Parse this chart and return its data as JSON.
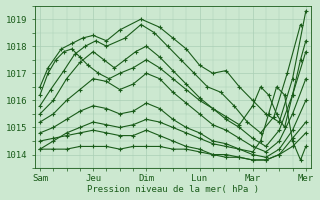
{
  "xlabel": "Pression niveau de la mer( hPa )",
  "ylim": [
    1013.5,
    1019.5
  ],
  "yticks": [
    1014,
    1015,
    1016,
    1017,
    1018,
    1019
  ],
  "day_labels": [
    "Sam",
    "Jeu",
    "Dim",
    "Lun",
    "Mar",
    "Mer"
  ],
  "day_positions": [
    0,
    2,
    4,
    6,
    8,
    10
  ],
  "bg_color": "#cce8d0",
  "grid_color": "#aacfb5",
  "line_color": "#1a5c1a",
  "marker": "+",
  "markersize": 3,
  "linewidth": 0.8,
  "lines": [
    {
      "x": [
        0.0,
        0.3,
        0.8,
        1.2,
        1.6,
        2.0,
        2.5,
        3.0,
        3.8,
        4.5,
        5.0,
        5.5,
        6.0,
        6.5,
        7.0,
        7.5,
        8.0,
        8.5,
        9.0,
        9.5,
        10.0
      ],
      "y": [
        1016.5,
        1017.2,
        1017.9,
        1018.1,
        1018.3,
        1018.4,
        1018.2,
        1018.6,
        1019.0,
        1018.7,
        1018.3,
        1017.9,
        1017.3,
        1017.0,
        1017.1,
        1016.5,
        1016.0,
        1015.5,
        1015.2,
        1016.8,
        1019.3
      ]
    },
    {
      "x": [
        0.0,
        0.4,
        0.9,
        1.3,
        1.7,
        2.1,
        2.5,
        3.2,
        3.8,
        4.3,
        4.8,
        5.3,
        5.8,
        6.3,
        6.8,
        7.3,
        7.8,
        8.3,
        8.8,
        9.3,
        9.8
      ],
      "y": [
        1015.8,
        1016.4,
        1017.1,
        1017.7,
        1018.0,
        1018.2,
        1018.0,
        1018.3,
        1018.8,
        1018.5,
        1018.0,
        1017.5,
        1017.0,
        1016.5,
        1016.3,
        1015.8,
        1015.2,
        1014.8,
        1015.4,
        1017.0,
        1018.8
      ]
    },
    {
      "x": [
        0.0,
        0.5,
        1.0,
        1.5,
        2.0,
        2.4,
        2.8,
        3.2,
        3.6,
        4.0,
        4.5,
        5.0,
        5.5,
        6.0,
        6.5,
        7.0,
        7.5,
        8.0,
        8.5,
        9.0,
        9.5,
        10.0
      ],
      "y": [
        1015.5,
        1016.0,
        1016.8,
        1017.4,
        1017.8,
        1017.5,
        1017.2,
        1017.5,
        1017.8,
        1018.0,
        1017.6,
        1017.1,
        1016.6,
        1016.1,
        1015.7,
        1015.3,
        1015.0,
        1014.6,
        1014.3,
        1014.9,
        1016.2,
        1017.8
      ]
    },
    {
      "x": [
        0.0,
        0.5,
        1.0,
        1.5,
        2.0,
        2.5,
        3.0,
        3.5,
        4.0,
        4.5,
        5.0,
        5.5,
        6.0,
        6.5,
        7.0,
        7.5,
        8.0,
        8.5,
        9.0,
        9.5,
        10.0
      ],
      "y": [
        1015.2,
        1015.5,
        1016.0,
        1016.4,
        1016.8,
        1016.7,
        1016.4,
        1016.6,
        1017.0,
        1016.8,
        1016.3,
        1015.9,
        1015.5,
        1015.1,
        1014.9,
        1014.6,
        1014.3,
        1014.1,
        1014.5,
        1015.5,
        1016.8
      ]
    },
    {
      "x": [
        0.0,
        0.5,
        1.0,
        1.5,
        2.0,
        2.5,
        3.0,
        3.5,
        4.0,
        4.5,
        5.0,
        5.5,
        6.0,
        6.5,
        7.0,
        7.5,
        8.0,
        8.5,
        9.0,
        9.5,
        10.0
      ],
      "y": [
        1014.8,
        1015.0,
        1015.3,
        1015.6,
        1015.8,
        1015.7,
        1015.5,
        1015.6,
        1015.9,
        1015.7,
        1015.3,
        1015.0,
        1014.8,
        1014.5,
        1014.4,
        1014.2,
        1014.0,
        1013.9,
        1014.2,
        1014.9,
        1016.0
      ]
    },
    {
      "x": [
        0.0,
        0.5,
        1.0,
        1.5,
        2.0,
        2.5,
        3.0,
        3.5,
        4.0,
        4.5,
        5.0,
        5.5,
        6.0,
        6.5,
        7.0,
        7.5,
        8.0,
        8.5,
        9.0,
        9.5,
        10.0
      ],
      "y": [
        1014.5,
        1014.6,
        1014.7,
        1014.8,
        1014.9,
        1014.8,
        1014.7,
        1014.7,
        1014.9,
        1014.7,
        1014.5,
        1014.3,
        1014.2,
        1014.0,
        1013.9,
        1013.9,
        1013.8,
        1013.8,
        1014.0,
        1014.6,
        1015.2
      ]
    },
    {
      "x": [
        0.0,
        0.5,
        1.0,
        1.5,
        2.0,
        2.5,
        3.0,
        3.5,
        4.0,
        4.5,
        5.0,
        5.5,
        6.0,
        6.5,
        7.0,
        7.5,
        8.0,
        8.5,
        9.0,
        9.5,
        10.0
      ],
      "y": [
        1014.2,
        1014.2,
        1014.2,
        1014.3,
        1014.3,
        1014.3,
        1014.2,
        1014.3,
        1014.3,
        1014.3,
        1014.2,
        1014.2,
        1014.1,
        1014.0,
        1014.0,
        1013.9,
        1013.8,
        1013.8,
        1014.0,
        1014.3,
        1014.8
      ]
    },
    {
      "x": [
        0.0,
        0.3,
        0.6,
        0.9,
        1.2,
        1.5,
        1.8,
        2.2,
        2.6,
        3.0,
        3.5,
        4.0,
        4.5,
        5.0,
        5.5,
        6.0,
        6.5,
        7.0,
        7.5,
        8.0,
        8.3,
        8.6,
        8.9,
        9.2,
        9.5,
        9.8,
        10.0
      ],
      "y": [
        1016.2,
        1017.0,
        1017.5,
        1017.8,
        1017.9,
        1017.6,
        1017.3,
        1017.0,
        1016.8,
        1017.0,
        1017.2,
        1017.5,
        1017.2,
        1016.8,
        1016.4,
        1016.0,
        1015.7,
        1015.4,
        1015.1,
        1015.8,
        1016.5,
        1016.2,
        1015.5,
        1015.0,
        1016.2,
        1017.5,
        1018.2
      ]
    },
    {
      "x": [
        0.0,
        0.5,
        1.0,
        1.5,
        2.0,
        2.5,
        3.0,
        3.5,
        4.0,
        4.5,
        5.0,
        5.5,
        6.0,
        6.5,
        7.0,
        7.5,
        8.0,
        8.3,
        8.6,
        8.9,
        9.2,
        9.5,
        9.8,
        10.0
      ],
      "y": [
        1014.2,
        1014.5,
        1014.8,
        1015.0,
        1015.2,
        1015.1,
        1015.0,
        1015.1,
        1015.3,
        1015.2,
        1015.0,
        1014.8,
        1014.6,
        1014.4,
        1014.3,
        1014.2,
        1014.1,
        1014.5,
        1015.5,
        1016.5,
        1016.2,
        1014.5,
        1013.8,
        1014.3
      ]
    }
  ]
}
